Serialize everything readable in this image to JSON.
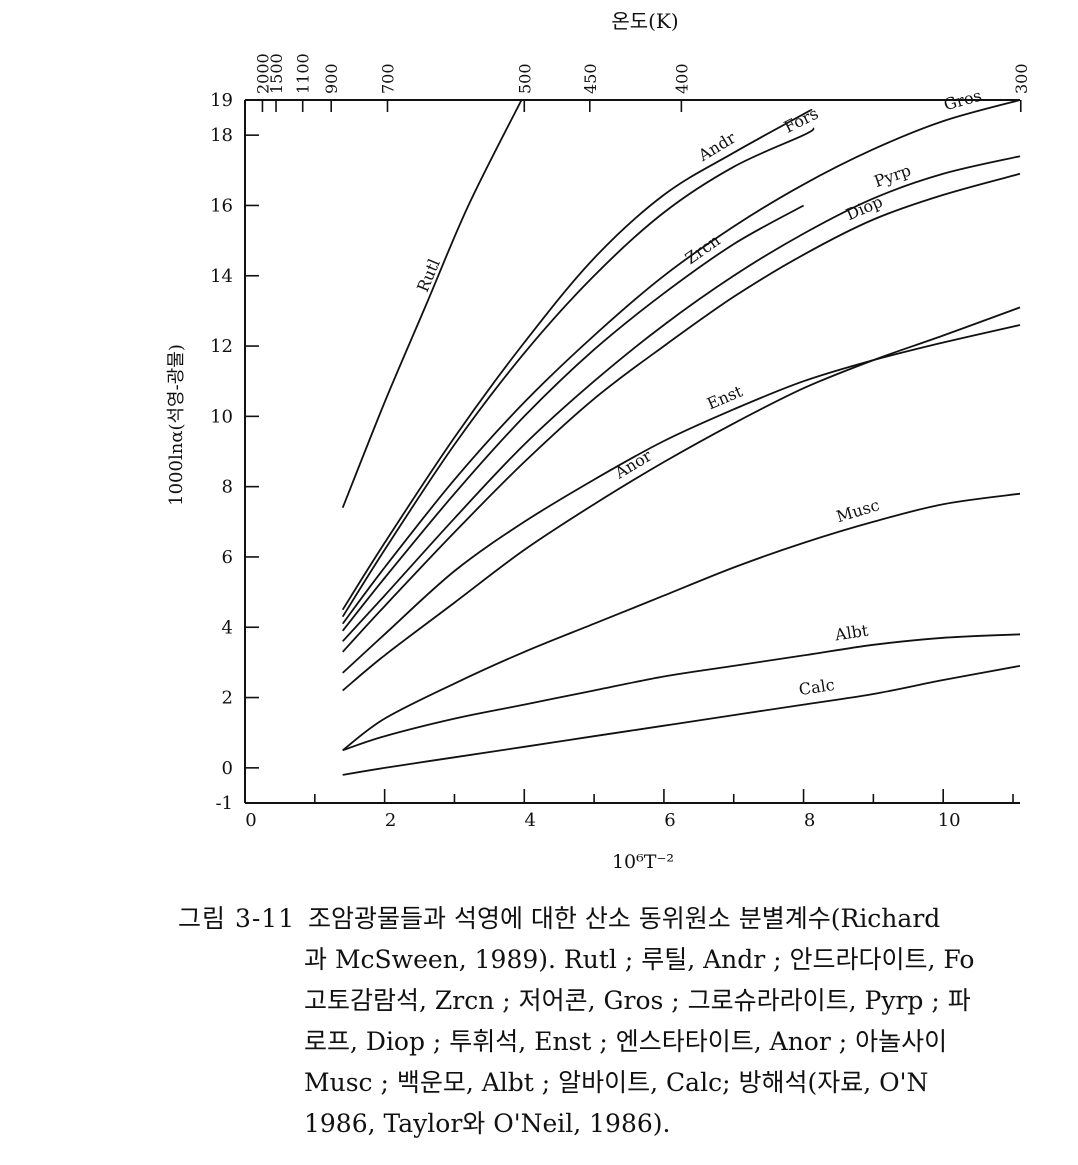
{
  "chart_data": {
    "type": "line",
    "top_axis_title": "온도(K)",
    "top_ticks": [
      "2000",
      "1500",
      "1100",
      "900",
      "700",
      "500",
      "450",
      "400",
      "300"
    ],
    "top_ticks_K": [
      2000,
      1500,
      1100,
      900,
      700,
      500,
      450,
      400,
      300
    ],
    "xlabel": "10⁶T⁻²",
    "xlim": [
      0,
      11.1
    ],
    "xticks": [
      "0",
      "2",
      "4",
      "6",
      "8",
      "10"
    ],
    "xticks_values": [
      0,
      2,
      4,
      6,
      8,
      10
    ],
    "ylabel": "1000lnα(석영-광물)",
    "ylim": [
      -1,
      19
    ],
    "yticks": [
      "-1",
      "0",
      "2",
      "4",
      "6",
      "8",
      "10",
      "12",
      "14",
      "16",
      "18",
      "19"
    ],
    "yticks_values": [
      -1,
      0,
      2,
      4,
      6,
      8,
      10,
      12,
      14,
      16,
      18,
      19
    ],
    "series": [
      {
        "name": "Rutl",
        "x": [
          1.4,
          2.0,
          2.6,
          3.2,
          3.96
        ],
        "y": [
          7.4,
          10.4,
          13.2,
          16.0,
          19.0
        ]
      },
      {
        "name": "Andr",
        "x": [
          1.4,
          2,
          3,
          4,
          5,
          6,
          7,
          8,
          8.1
        ],
        "y": [
          4.5,
          6.4,
          9.4,
          12.1,
          14.5,
          16.3,
          17.5,
          18.6,
          18.7
        ]
      },
      {
        "name": "Fors",
        "x": [
          1.4,
          2,
          3,
          4,
          5,
          6,
          7,
          8,
          8.15
        ],
        "y": [
          4.3,
          6.2,
          9.2,
          11.8,
          14.0,
          15.8,
          17.1,
          18.0,
          18.2
        ]
      },
      {
        "name": "Zrcn",
        "x": [
          1.4,
          2,
          3,
          4,
          5,
          6,
          7,
          8
        ],
        "y": [
          3.9,
          5.4,
          7.8,
          10.0,
          11.9,
          13.5,
          14.9,
          16.0
        ]
      },
      {
        "name": "Gros",
        "x": [
          1.4,
          2,
          3,
          4,
          5,
          6,
          7,
          8,
          9,
          10,
          11.1
        ],
        "y": [
          4.1,
          5.7,
          8.2,
          10.4,
          12.3,
          14.0,
          15.4,
          16.6,
          17.6,
          18.4,
          19.0
        ]
      },
      {
        "name": "Pyrp",
        "x": [
          1.4,
          2,
          3,
          4,
          5,
          6,
          7,
          8,
          9,
          10,
          11.1
        ],
        "y": [
          3.6,
          4.9,
          7.1,
          9.2,
          11.0,
          12.6,
          14.0,
          15.2,
          16.2,
          16.9,
          17.4
        ]
      },
      {
        "name": "Diop",
        "x": [
          1.4,
          2,
          3,
          4,
          5,
          6,
          7,
          8,
          9,
          10,
          11.1
        ],
        "y": [
          3.3,
          4.6,
          6.7,
          8.7,
          10.5,
          12.0,
          13.4,
          14.6,
          15.6,
          16.3,
          16.9
        ]
      },
      {
        "name": "Enst",
        "x": [
          1.4,
          2,
          3,
          4,
          5,
          6,
          7,
          8,
          9,
          10,
          11.1
        ],
        "y": [
          2.7,
          3.8,
          5.6,
          7.0,
          8.2,
          9.3,
          10.2,
          11.0,
          11.6,
          12.1,
          12.6
        ]
      },
      {
        "name": "Anor",
        "x": [
          1.4,
          2,
          3,
          4,
          5,
          6,
          7,
          8,
          9,
          10,
          11.1
        ],
        "y": [
          2.2,
          3.2,
          4.7,
          6.2,
          7.5,
          8.7,
          9.8,
          10.8,
          11.6,
          12.3,
          13.1
        ]
      },
      {
        "name": "Musc",
        "x": [
          1.4,
          2,
          3,
          4,
          5,
          6,
          7,
          8,
          9,
          10,
          11.1
        ],
        "y": [
          0.5,
          1.4,
          2.4,
          3.3,
          4.1,
          4.9,
          5.7,
          6.4,
          7.0,
          7.5,
          7.8
        ]
      },
      {
        "name": "Albt",
        "x": [
          1.4,
          2,
          3,
          4,
          5,
          6,
          7,
          8,
          9,
          10,
          11.1
        ],
        "y": [
          0.5,
          0.9,
          1.4,
          1.8,
          2.2,
          2.6,
          2.9,
          3.2,
          3.5,
          3.7,
          3.8
        ]
      },
      {
        "name": "Calc",
        "x": [
          1.4,
          2,
          3,
          4,
          5,
          6,
          7,
          8,
          9,
          10,
          11.1
        ],
        "y": [
          -0.2,
          0.0,
          0.3,
          0.6,
          0.9,
          1.2,
          1.5,
          1.8,
          2.1,
          2.5,
          2.9
        ]
      }
    ]
  },
  "caption": {
    "label": "그림 3-11",
    "lines": [
      "조암광물들과 석영에 대한 산소 동위원소 분별계수(Richard",
      "과 McSween, 1989). Rutl ; 루틸, Andr ; 안드라다이트, Fo",
      "고토감람석, Zrcn ; 저어콘, Gros ; 그로슈라라이트, Pyrp ; 파",
      "로프, Diop ; 투휘석, Enst ; 엔스타타이트, Anor ; 아놀사이",
      "Musc ; 백운모, Albt ; 알바이트, Calc; 방해석(자료, O'N",
      "1986, Taylor와 O'Neil, 1986)."
    ]
  },
  "colors": {
    "line": "#111111",
    "background": "#ffffff"
  }
}
